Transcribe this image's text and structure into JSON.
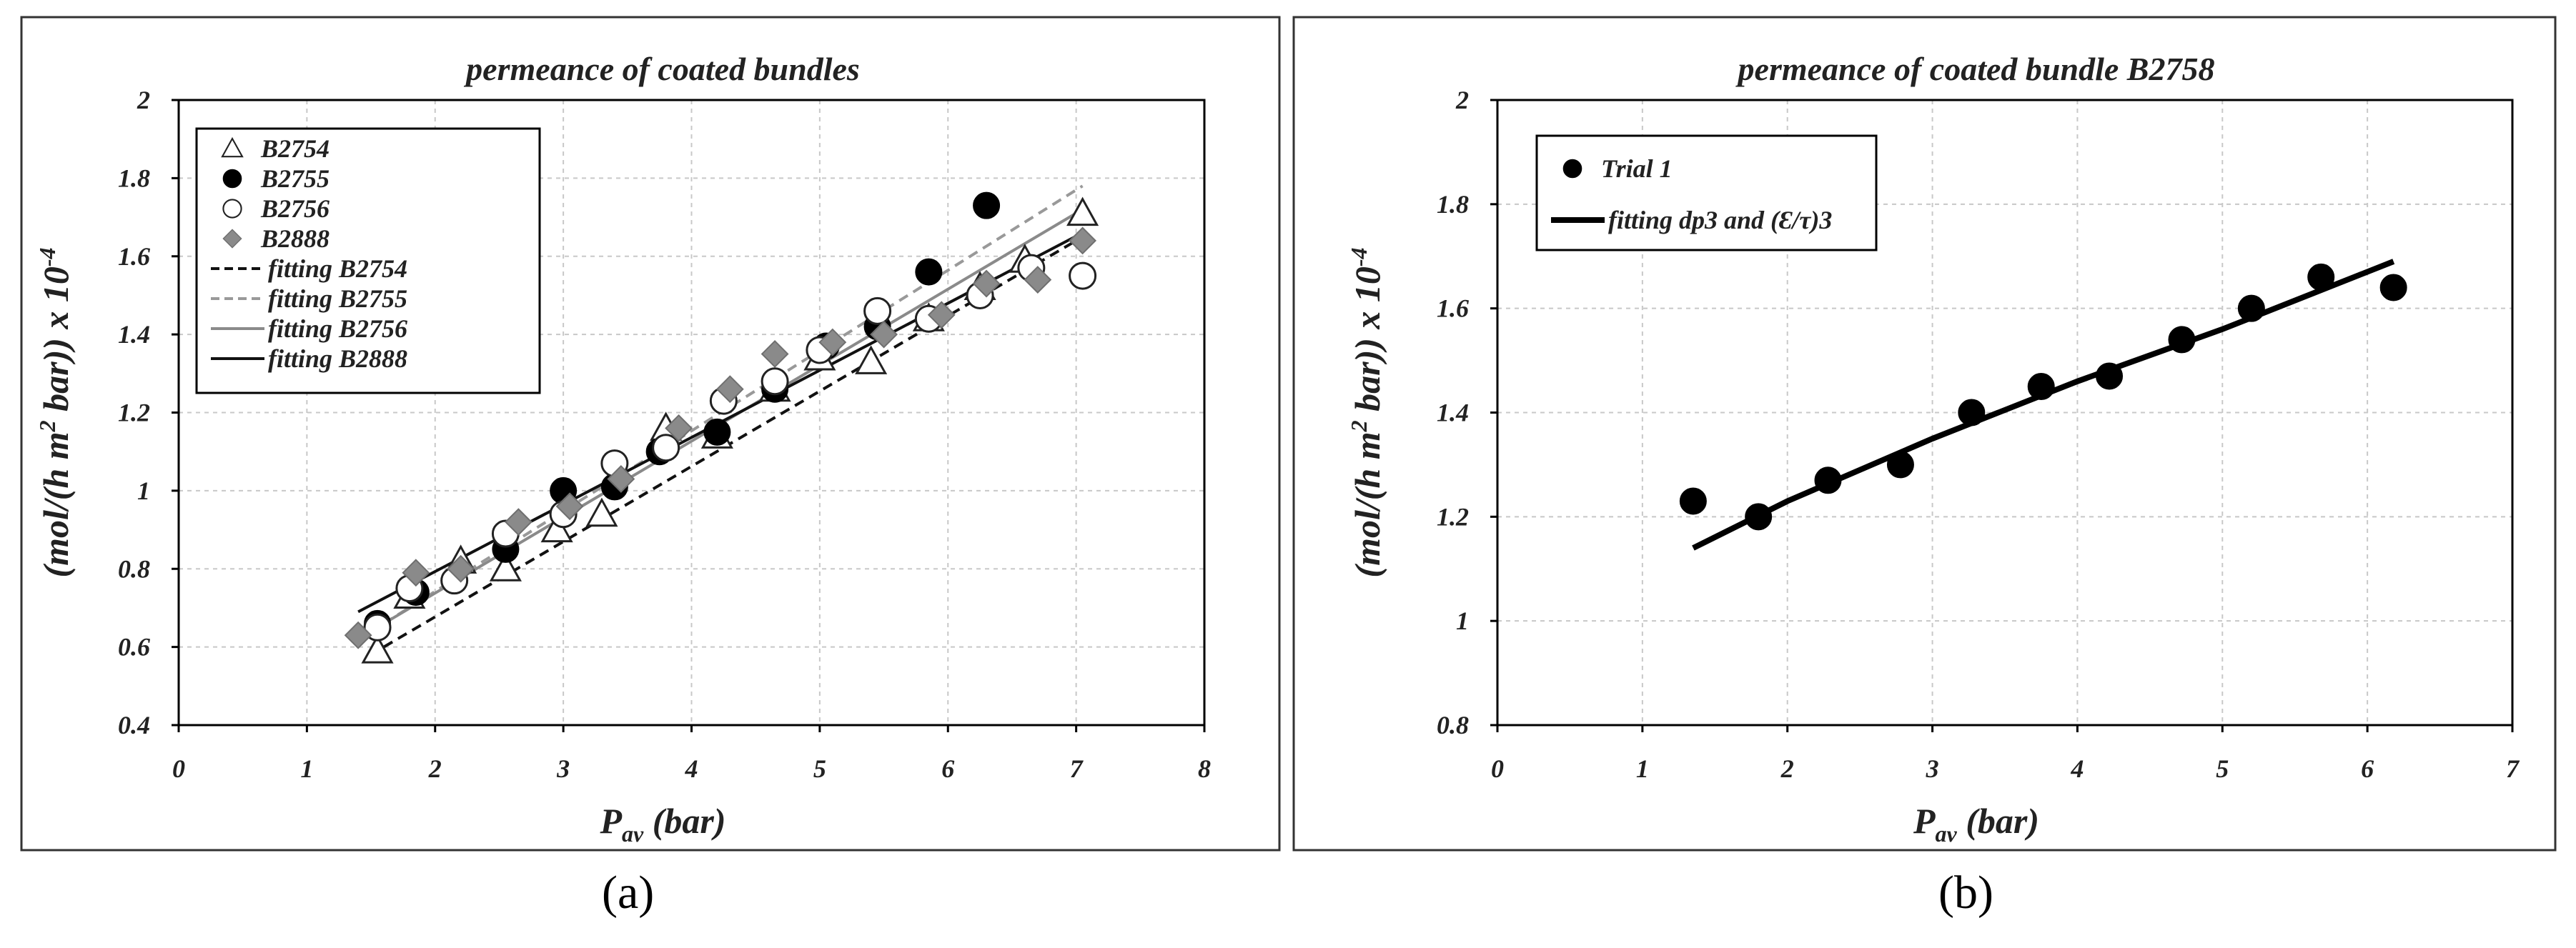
{
  "chart_data": [
    {
      "panel": "a",
      "type": "scatter",
      "title": "permeance of coated bundles",
      "xlabel": "P",
      "xlabel_sub": "av",
      "xlabel_unit": " (bar)",
      "ylabel": "(mol/(h m",
      "ylabel_sup": "2",
      "ylabel_tail": " bar)) x 10",
      "ylabel_exp": "-4",
      "xlim": [
        0,
        8
      ],
      "ylim": [
        0.4,
        2
      ],
      "xticks": [
        "0",
        "1",
        "2",
        "3",
        "4",
        "5",
        "6",
        "7",
        "8"
      ],
      "yticks": [
        "0.4",
        "0.6",
        "0.8",
        "1",
        "1.2",
        "1.4",
        "1.6",
        "1.8",
        "2"
      ],
      "grid": true,
      "legend_position": "top-left",
      "series": [
        {
          "name": "B2754",
          "marker": "triangle-open",
          "color": "#222222",
          "points": [
            [
              1.55,
              0.59
            ],
            [
              1.8,
              0.73
            ],
            [
              2.2,
              0.82
            ],
            [
              2.55,
              0.8
            ],
            [
              2.95,
              0.9
            ],
            [
              3.3,
              0.94
            ],
            [
              3.8,
              1.16
            ],
            [
              4.2,
              1.14
            ],
            [
              4.65,
              1.26
            ],
            [
              5.0,
              1.34
            ],
            [
              5.4,
              1.33
            ],
            [
              5.85,
              1.44
            ],
            [
              6.25,
              1.52
            ],
            [
              6.6,
              1.59
            ],
            [
              7.05,
              1.71
            ]
          ]
        },
        {
          "name": "B2755",
          "marker": "circle-filled",
          "color": "#000000",
          "points": [
            [
              1.55,
              0.66
            ],
            [
              1.85,
              0.74
            ],
            [
              2.55,
              0.85
            ],
            [
              3.0,
              1.0
            ],
            [
              3.4,
              1.01
            ],
            [
              3.75,
              1.1
            ],
            [
              4.2,
              1.15
            ],
            [
              4.65,
              1.26
            ],
            [
              5.05,
              1.37
            ],
            [
              5.45,
              1.42
            ],
            [
              5.85,
              1.56
            ],
            [
              6.3,
              1.73
            ]
          ]
        },
        {
          "name": "B2756",
          "marker": "circle-open",
          "color": "#222222",
          "points": [
            [
              1.55,
              0.65
            ],
            [
              1.8,
              0.75
            ],
            [
              2.15,
              0.77
            ],
            [
              2.55,
              0.89
            ],
            [
              3.0,
              0.94
            ],
            [
              3.4,
              1.07
            ],
            [
              3.8,
              1.11
            ],
            [
              4.25,
              1.23
            ],
            [
              4.65,
              1.28
            ],
            [
              5.0,
              1.36
            ],
            [
              5.45,
              1.46
            ],
            [
              5.85,
              1.44
            ],
            [
              6.25,
              1.5
            ],
            [
              6.65,
              1.57
            ],
            [
              7.05,
              1.55
            ]
          ]
        },
        {
          "name": "B2888",
          "marker": "diamond-filled",
          "color": "#8a8a8a",
          "points": [
            [
              1.4,
              0.63
            ],
            [
              1.85,
              0.79
            ],
            [
              2.2,
              0.8
            ],
            [
              2.65,
              0.92
            ],
            [
              3.05,
              0.96
            ],
            [
              3.45,
              1.03
            ],
            [
              3.9,
              1.16
            ],
            [
              4.3,
              1.26
            ],
            [
              4.65,
              1.35
            ],
            [
              5.1,
              1.38
            ],
            [
              5.5,
              1.4
            ],
            [
              5.95,
              1.45
            ],
            [
              6.3,
              1.53
            ],
            [
              6.7,
              1.54
            ],
            [
              7.05,
              1.64
            ]
          ]
        }
      ],
      "fits": [
        {
          "name": "fitting B2754",
          "color": "#111111",
          "dash": "14,9",
          "width": 4,
          "points": [
            [
              1.6,
              0.6
            ],
            [
              7.0,
              1.64
            ]
          ]
        },
        {
          "name": "fitting B2755",
          "color": "#999999",
          "dash": "14,9",
          "width": 4,
          "points": [
            [
              1.6,
              0.66
            ],
            [
              7.05,
              1.78
            ]
          ]
        },
        {
          "name": "fitting B2756",
          "color": "#8a8a8a",
          "dash": "",
          "width": 4,
          "points": [
            [
              1.6,
              0.66
            ],
            [
              7.05,
              1.72
            ]
          ]
        },
        {
          "name": "fitting B2888",
          "color": "#111111",
          "dash": "",
          "width": 4,
          "points": [
            [
              1.4,
              0.69
            ],
            [
              7.05,
              1.66
            ]
          ]
        }
      ]
    },
    {
      "panel": "b",
      "type": "scatter",
      "title": "permeance of coated bundle B2758",
      "xlabel": "P",
      "xlabel_sub": "av",
      "xlabel_unit": " (bar)",
      "ylabel": "(mol/(h m",
      "ylabel_sup": "2",
      "ylabel_tail": " bar)) x 10",
      "ylabel_exp": "-4",
      "xlim": [
        0,
        7
      ],
      "ylim": [
        0.8,
        2
      ],
      "xticks": [
        "0",
        "1",
        "2",
        "3",
        "4",
        "5",
        "6",
        "7"
      ],
      "yticks": [
        "0.8",
        "1",
        "1.2",
        "1.4",
        "1.6",
        "1.8",
        "2"
      ],
      "grid": true,
      "legend_position": "top-left",
      "series": [
        {
          "name": "Trial 1",
          "marker": "circle-filled",
          "color": "#000000",
          "points": [
            [
              1.35,
              1.23
            ],
            [
              1.8,
              1.2
            ],
            [
              2.28,
              1.27
            ],
            [
              2.78,
              1.3
            ],
            [
              3.27,
              1.4
            ],
            [
              3.75,
              1.45
            ],
            [
              4.22,
              1.47
            ],
            [
              4.72,
              1.54
            ],
            [
              5.2,
              1.6
            ],
            [
              5.68,
              1.66
            ],
            [
              6.18,
              1.64
            ]
          ]
        }
      ],
      "fits": [
        {
          "name": "fitting dp3 and (Ɛ/τ)3",
          "color": "#000000",
          "dash": "",
          "width": 8,
          "points": [
            [
              1.35,
              1.14
            ],
            [
              2.0,
              1.23
            ],
            [
              3.0,
              1.35
            ],
            [
              4.0,
              1.46
            ],
            [
              5.0,
              1.56
            ],
            [
              6.18,
              1.69
            ]
          ]
        }
      ]
    }
  ],
  "panel_labels": [
    "(a)",
    "(b)"
  ]
}
